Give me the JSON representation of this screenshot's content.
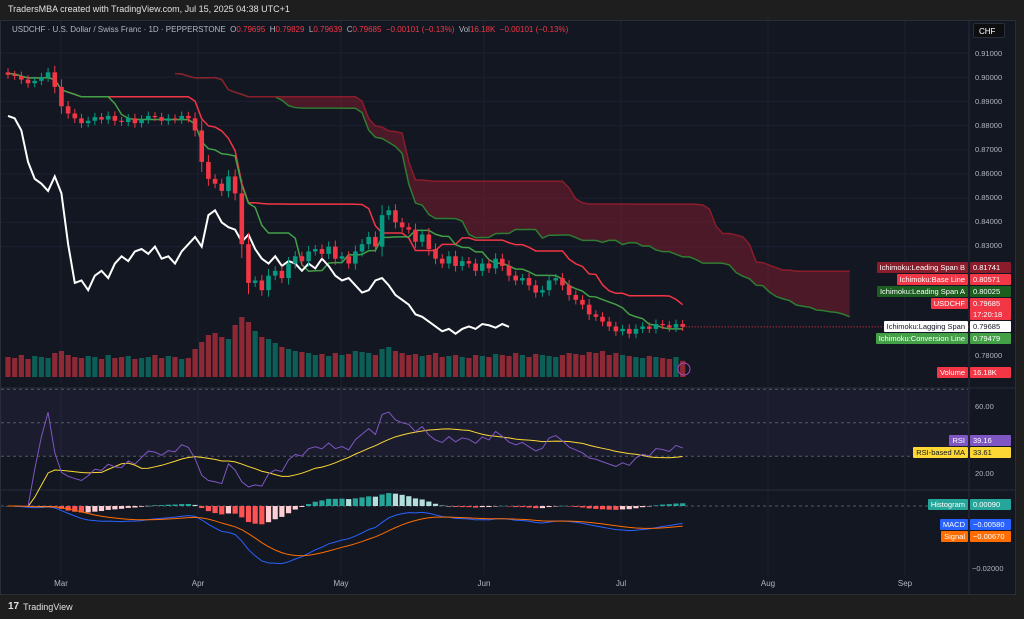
{
  "credit": "TradersMBA created with TradingView.com, Jul 15, 2025 04:38 UTC+1",
  "legend": {
    "symbol": "USDCHF · U.S. Dollar / Swiss Franc · 1D · PEPPERSTONE",
    "o_label": "O",
    "o": "0.79695",
    "h_label": "H",
    "h": "0.79829",
    "l_label": "L",
    "l": "0.79639",
    "c_label": "C",
    "c": "0.79685",
    "change": "−0.00101 (−0.13%)",
    "vol_label": "Vol",
    "vol": "16.18K",
    "vol_change": "−0.00101 (−0.13%)"
  },
  "currency": "CHF",
  "price_axis": [
    "0.91000",
    "0.90000",
    "0.89000",
    "0.88000",
    "0.87000",
    "0.86000",
    "0.85000",
    "0.84000",
    "0.83000",
    "0.78000"
  ],
  "rsi_axis": [
    "60.00",
    "20.00"
  ],
  "macd_axis": [
    "−0.02000"
  ],
  "time_axis": [
    "Mar",
    "Apr",
    "May",
    "Jun",
    "Jul",
    "Aug",
    "Sep"
  ],
  "tags": {
    "span_b": {
      "name": "Ichimoku:Leading Span B",
      "value": "0.81741"
    },
    "base": {
      "name": "Ichimoku:Base Line",
      "value": "0.80571"
    },
    "span_a": {
      "name": "Ichimoku:Leading Span A",
      "value": "0.80025"
    },
    "symbol": {
      "name": "USDCHF",
      "value": "0.79685",
      "countdown": "17:20:18"
    },
    "lagging": {
      "name": "Ichimoku:Lagging Span",
      "value": "0.79685"
    },
    "conversion": {
      "name": "Ichimoku:Conversion Line",
      "value": "0.79479"
    },
    "volume": {
      "name": "Volume",
      "value": "16.18K"
    },
    "rsi": {
      "name": "RSI",
      "value": "39.16"
    },
    "rsi_ma": {
      "name": "RSI-based MA",
      "value": "33.61"
    },
    "histogram": {
      "name": "Histogram",
      "value": "0.00090"
    },
    "macd": {
      "name": "MACD",
      "value": "−0.00580"
    },
    "signal": {
      "name": "Signal",
      "value": "−0.00670"
    }
  },
  "brand": "TradingView",
  "colors": {
    "up": "#089981",
    "down": "#f23645",
    "conversion": "#43a047",
    "base": "#f23645",
    "span_a": "#2e7d32",
    "span_b": "#8a1c2b",
    "lagging": "#ffffff",
    "rsi": "#7e57c2",
    "rsi_ma": "#fdd835",
    "macd": "#2962ff",
    "signal": "#ff6d00"
  },
  "chart_data": {
    "type": "candlestick",
    "title": "USDCHF · 1D · PEPPERSTONE",
    "ylabel": "CHF",
    "ylim": [
      0.78,
      0.915
    ],
    "x_range": "Feb 20 2025 – Jul 15 2025",
    "indicators": [
      "Ichimoku (9,26,52,26)",
      "Volume",
      "RSI 14 + MA 14",
      "MACD 12 26 9"
    ],
    "closes": [
      0.901,
      0.9005,
      0.899,
      0.8975,
      0.8985,
      0.9,
      0.902,
      0.896,
      0.888,
      0.885,
      0.883,
      0.881,
      0.882,
      0.8835,
      0.8825,
      0.884,
      0.882,
      0.8815,
      0.883,
      0.881,
      0.8825,
      0.884,
      0.8835,
      0.882,
      0.883,
      0.8825,
      0.884,
      0.883,
      0.878,
      0.865,
      0.858,
      0.856,
      0.853,
      0.859,
      0.852,
      0.831,
      0.815,
      0.816,
      0.812,
      0.818,
      0.82,
      0.817,
      0.823,
      0.826,
      0.824,
      0.828,
      0.829,
      0.827,
      0.83,
      0.825,
      0.826,
      0.823,
      0.828,
      0.831,
      0.834,
      0.83,
      0.843,
      0.845,
      0.84,
      0.838,
      0.837,
      0.832,
      0.835,
      0.829,
      0.825,
      0.823,
      0.826,
      0.822,
      0.824,
      0.823,
      0.82,
      0.823,
      0.821,
      0.825,
      0.822,
      0.818,
      0.816,
      0.817,
      0.814,
      0.811,
      0.812,
      0.816,
      0.817,
      0.814,
      0.81,
      0.808,
      0.806,
      0.802,
      0.801,
      0.799,
      0.797,
      0.795,
      0.796,
      0.794,
      0.796,
      0.797,
      0.796,
      0.798,
      0.7975,
      0.7965,
      0.798,
      0.79685
    ],
    "volumes_k": [
      20,
      19,
      22,
      18,
      21,
      20,
      19,
      24,
      26,
      22,
      20,
      19,
      21,
      20,
      18,
      22,
      19,
      20,
      21,
      18,
      19,
      20,
      22,
      19,
      21,
      20,
      18,
      19,
      28,
      35,
      42,
      44,
      40,
      38,
      52,
      60,
      55,
      46,
      40,
      38,
      34,
      30,
      28,
      26,
      25,
      24,
      22,
      23,
      21,
      24,
      22,
      23,
      26,
      25,
      24,
      22,
      28,
      30,
      26,
      24,
      22,
      23,
      21,
      22,
      24,
      20,
      21,
      22,
      20,
      19,
      22,
      21,
      20,
      23,
      22,
      21,
      24,
      22,
      20,
      23,
      22,
      21,
      20,
      22,
      24,
      23,
      22,
      25,
      24,
      26,
      22,
      24,
      22,
      21,
      20,
      19,
      21,
      20,
      19,
      18,
      20,
      16.18
    ]
  }
}
